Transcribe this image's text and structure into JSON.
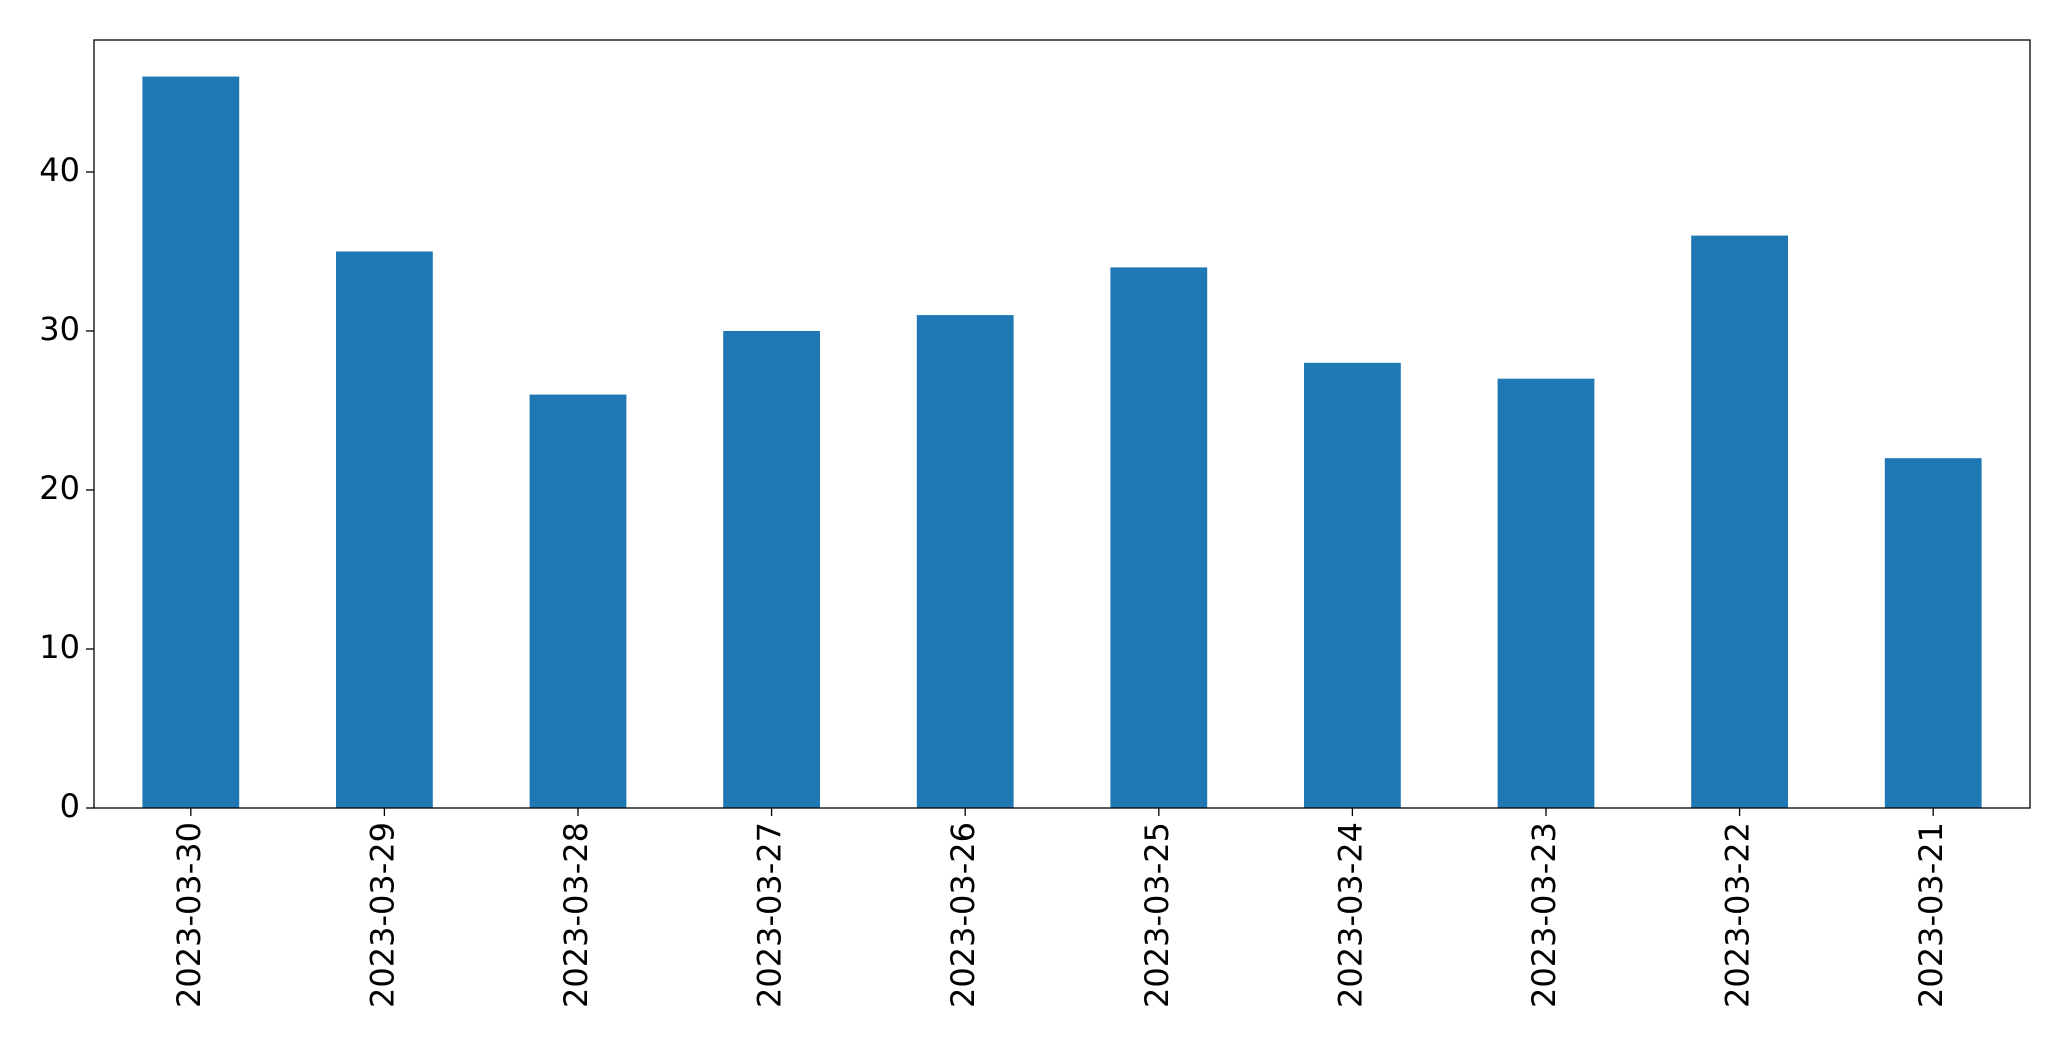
{
  "chart_data": {
    "type": "bar",
    "categories": [
      "2023-03-30",
      "2023-03-29",
      "2023-03-28",
      "2023-03-27",
      "2023-03-26",
      "2023-03-25",
      "2023-03-24",
      "2023-03-23",
      "2023-03-22",
      "2023-03-21"
    ],
    "values": [
      46,
      35,
      26,
      30,
      31,
      34,
      28,
      27,
      36,
      22
    ],
    "color": "#1f77b4",
    "ylim": [
      0,
      48.3
    ],
    "yticks": [
      0,
      10,
      20,
      30,
      40
    ],
    "grid": false
  }
}
